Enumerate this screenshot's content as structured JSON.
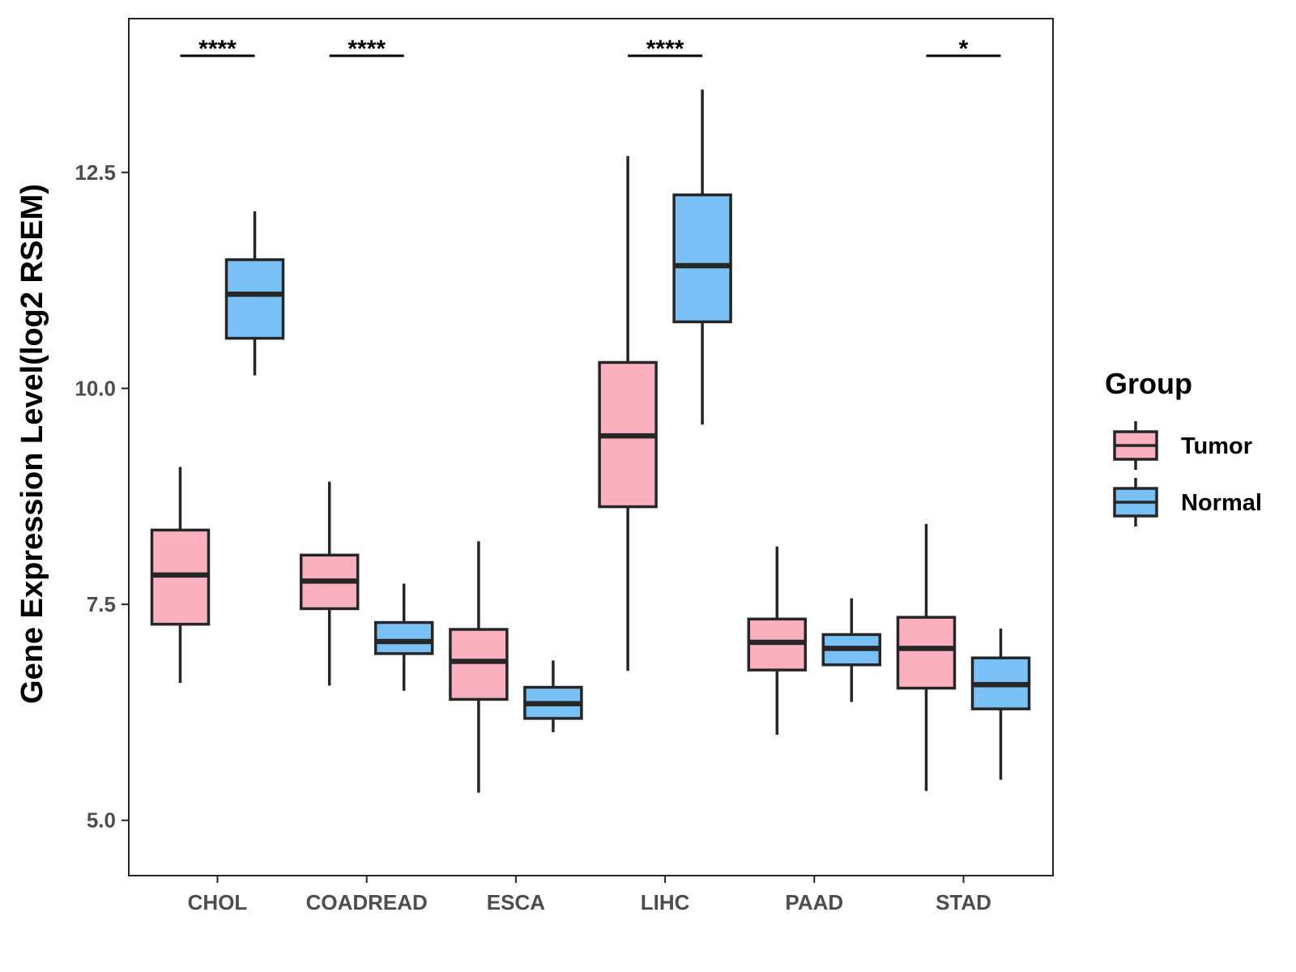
{
  "chart_data": {
    "type": "boxplot",
    "title": "",
    "xlabel": "",
    "ylabel": "Gene Expression Level(log2 RSEM)",
    "ylim": [
      4.36,
      14.28
    ],
    "yticks": [
      5.0,
      7.5,
      10.0,
      12.5
    ],
    "ytick_labels": [
      "5.0",
      "7.5",
      "10.0",
      "12.5"
    ],
    "categories": [
      "CHOL",
      "COADREAD",
      "ESCA",
      "LIHC",
      "PAAD",
      "STAD"
    ],
    "legend": {
      "title": "Group",
      "position": "right",
      "entries": [
        "Tumor",
        "Normal"
      ]
    },
    "colors": {
      "Tumor": "#fbb0c0",
      "Normal": "#79c0f7",
      "stroke": "#262626"
    },
    "series": [
      {
        "name": "Tumor",
        "boxes": [
          {
            "min": 6.59,
            "q1": 7.27,
            "median": 7.84,
            "q3": 8.36,
            "max": 9.09
          },
          {
            "min": 6.56,
            "q1": 7.45,
            "median": 7.77,
            "q3": 8.07,
            "max": 8.92
          },
          {
            "min": 5.32,
            "q1": 6.4,
            "median": 6.84,
            "q3": 7.21,
            "max": 8.23
          },
          {
            "min": 6.73,
            "q1": 8.63,
            "median": 9.45,
            "q3": 10.3,
            "max": 12.69
          },
          {
            "min": 5.99,
            "q1": 6.74,
            "median": 7.06,
            "q3": 7.33,
            "max": 8.17
          },
          {
            "min": 5.34,
            "q1": 6.53,
            "median": 6.99,
            "q3": 7.35,
            "max": 8.43
          }
        ]
      },
      {
        "name": "Normal",
        "boxes": [
          {
            "min": 10.15,
            "q1": 10.58,
            "median": 11.09,
            "q3": 11.49,
            "max": 12.05
          },
          {
            "min": 6.5,
            "q1": 6.93,
            "median": 7.07,
            "q3": 7.29,
            "max": 7.74
          },
          {
            "min": 6.02,
            "q1": 6.18,
            "median": 6.35,
            "q3": 6.54,
            "max": 6.85
          },
          {
            "min": 9.58,
            "q1": 10.77,
            "median": 11.42,
            "q3": 12.24,
            "max": 13.46
          },
          {
            "min": 6.37,
            "q1": 6.8,
            "median": 6.99,
            "q3": 7.15,
            "max": 7.57
          },
          {
            "min": 5.47,
            "q1": 6.29,
            "median": 6.57,
            "q3": 6.88,
            "max": 7.22
          }
        ]
      }
    ],
    "annotations": [
      {
        "category": "CHOL",
        "label": "****",
        "y": 13.85
      },
      {
        "category": "COADREAD",
        "label": "****",
        "y": 13.85
      },
      {
        "category": "LIHC",
        "label": "****",
        "y": 13.85
      },
      {
        "category": "STAD",
        "label": "*",
        "y": 13.85
      }
    ]
  }
}
